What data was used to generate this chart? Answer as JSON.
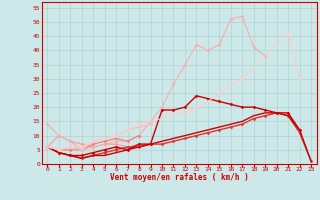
{
  "xlabel": "Vent moyen/en rafales ( km/h )",
  "bg_color": "#cce8e8",
  "grid_color": "#aacccc",
  "text_color": "#cc0000",
  "xlim": [
    -0.5,
    23.5
  ],
  "ylim": [
    0,
    57
  ],
  "yticks": [
    0,
    5,
    10,
    15,
    20,
    25,
    30,
    35,
    40,
    45,
    50,
    55
  ],
  "xticks": [
    0,
    1,
    2,
    3,
    4,
    5,
    6,
    7,
    8,
    9,
    10,
    11,
    12,
    13,
    14,
    15,
    16,
    17,
    18,
    19,
    20,
    21,
    22,
    23
  ],
  "series": [
    {
      "x": [
        0,
        1,
        2,
        3,
        4,
        5,
        6,
        7,
        8
      ],
      "y": [
        6,
        10,
        8,
        7,
        6,
        7,
        7,
        6,
        7
      ],
      "color": "#ff9999",
      "lw": 0.8,
      "marker": "D",
      "ms": 1.5
    },
    {
      "x": [
        0,
        1,
        2,
        3,
        4,
        5,
        6,
        7,
        8,
        9,
        10,
        11,
        12,
        13,
        14,
        15,
        16,
        17,
        18,
        19
      ],
      "y": [
        14,
        10,
        8,
        5,
        6,
        7,
        8,
        8,
        10,
        15,
        20,
        28,
        35,
        42,
        40,
        42,
        51,
        52,
        41,
        38
      ],
      "color": "#ffaaaa",
      "lw": 0.8,
      "marker": "D",
      "ms": 1.5
    },
    {
      "x": [
        0,
        1,
        2,
        3,
        4,
        5,
        6,
        7,
        8,
        9,
        10,
        11,
        12,
        13,
        14,
        15,
        16,
        17,
        18,
        19,
        20,
        21,
        22,
        23
      ],
      "y": [
        6,
        4,
        3,
        2,
        3,
        4,
        5,
        6,
        6,
        7,
        7,
        8,
        9,
        10,
        11,
        12,
        13,
        14,
        16,
        17,
        18,
        17,
        11,
        1
      ],
      "color": "#dd3333",
      "lw": 1.0,
      "marker": "D",
      "ms": 1.5
    },
    {
      "x": [
        0,
        1,
        2,
        3,
        4,
        5,
        6,
        7,
        8,
        9,
        10,
        11,
        12,
        13,
        14,
        15,
        16,
        17,
        18,
        19,
        20,
        21,
        22,
        23
      ],
      "y": [
        6,
        4,
        3,
        2,
        3,
        3,
        4,
        5,
        6,
        7,
        8,
        9,
        10,
        11,
        12,
        13,
        14,
        15,
        17,
        18,
        18,
        17,
        12,
        1
      ],
      "color": "#cc0000",
      "lw": 1.0,
      "marker": null,
      "ms": 0
    },
    {
      "x": [
        0,
        1,
        2,
        3,
        4,
        5,
        6,
        7,
        8,
        9,
        10,
        11,
        12,
        13,
        14,
        15,
        16,
        17,
        18,
        19,
        20,
        21,
        22
      ],
      "y": [
        6,
        4,
        3,
        3,
        4,
        5,
        6,
        5,
        7,
        7,
        19,
        19,
        20,
        24,
        23,
        22,
        21,
        20,
        20,
        19,
        18,
        18,
        12
      ],
      "color": "#cc0000",
      "lw": 1.0,
      "marker": "D",
      "ms": 1.5
    },
    {
      "x": [
        0,
        1,
        2,
        3,
        4,
        5,
        6,
        7,
        8
      ],
      "y": [
        6,
        5,
        5,
        5,
        7,
        8,
        9,
        8,
        10
      ],
      "color": "#ff7777",
      "lw": 0.8,
      "marker": "D",
      "ms": 1.5
    },
    {
      "x": [
        0,
        1,
        2,
        3,
        4,
        5,
        6,
        7,
        8,
        9
      ],
      "y": [
        6,
        5,
        6,
        5,
        8,
        9,
        10,
        12,
        13,
        14
      ],
      "color": "#ffbbbb",
      "lw": 0.8,
      "marker": "D",
      "ms": 1.5
    },
    {
      "x": [
        0,
        1,
        2,
        3,
        4,
        5,
        6,
        7,
        8,
        12,
        13,
        14,
        15,
        16,
        17,
        21,
        22
      ],
      "y": [
        6,
        5,
        6,
        6,
        8,
        9,
        10,
        12,
        14,
        18,
        20,
        22,
        25,
        28,
        30,
        46,
        30
      ],
      "color": "#ffcccc",
      "lw": 0.8,
      "marker": "D",
      "ms": 1.5
    }
  ]
}
